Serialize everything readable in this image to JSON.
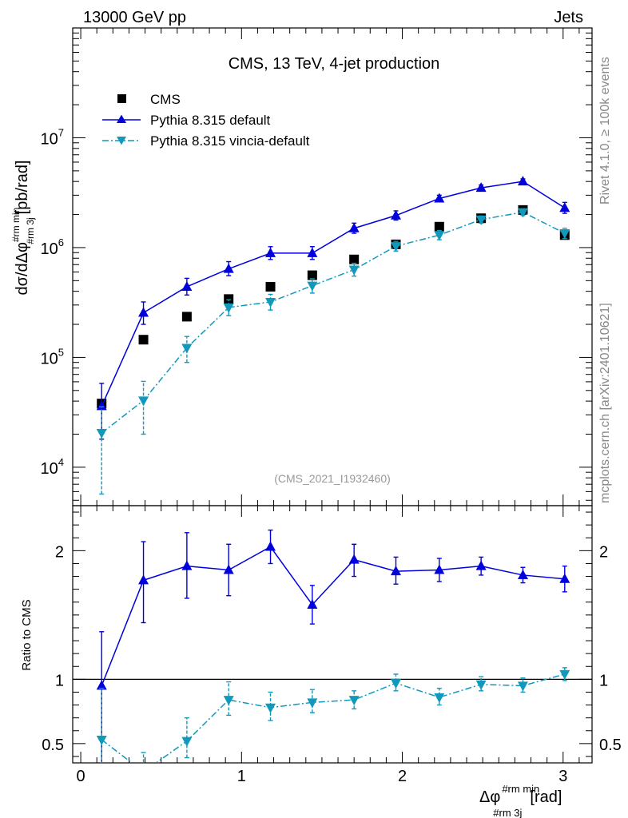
{
  "header": {
    "left": "13000 GeV pp",
    "right": "Jets"
  },
  "side_texts": {
    "rivet": "Rivet 4.1.0, ≥ 100k events",
    "mcplots": "mcplots.cern.ch [arXiv:2401.10621]"
  },
  "reference": "(CMS_2021_I1932460)",
  "colors": {
    "cms": "#000000",
    "default": "#0000dd",
    "vincia": "#1199bb"
  },
  "chart_data": [
    {
      "type": "line",
      "title": "CMS, 13 TeV, 4-jet production",
      "xlabel_main": "Δφ",
      "xlabel_sup": "#rm min",
      "xlabel_sub": "#rm 3j",
      "xlabel_unit": "[rad]",
      "ylabel_main": "dσ/dΔφ",
      "ylabel_sup": "#rm min",
      "ylabel_sub": "#rm 3j",
      "ylabel_unit": "[pb/rad]",
      "yscale": "log",
      "xlim": [
        -0.05,
        3.18
      ],
      "ylim_log10": [
        3.65,
        8.0
      ],
      "y_ticks": [
        {
          "value": 10000,
          "mant": "10",
          "exp": "4"
        },
        {
          "value": 100000,
          "mant": "10",
          "exp": "5"
        },
        {
          "value": 1000000,
          "mant": "10",
          "exp": "6"
        },
        {
          "value": 10000000,
          "mant": "10",
          "exp": "7"
        }
      ],
      "legend_position": "top-left",
      "x": [
        0.13,
        0.39,
        0.66,
        0.92,
        1.18,
        1.44,
        1.7,
        1.96,
        2.23,
        2.49,
        2.75,
        3.01
      ],
      "series": [
        {
          "name": "CMS",
          "marker": "square",
          "line": "none",
          "values": [
            38000,
            145000,
            235000,
            340000,
            440000,
            560000,
            780000,
            1070000,
            1550000,
            1850000,
            2200000,
            1300000
          ],
          "err_low": [
            0,
            0,
            0,
            0,
            0,
            0,
            0,
            0,
            0,
            0,
            0,
            0
          ],
          "err_high": [
            0,
            0,
            0,
            0,
            0,
            0,
            0,
            0,
            0,
            0,
            0,
            0
          ]
        },
        {
          "name": "Pythia 8.315 default",
          "marker": "triangle-up",
          "line": "solid",
          "values": [
            36000,
            255000,
            440000,
            640000,
            890000,
            890000,
            1500000,
            1960000,
            2800000,
            3500000,
            4000000,
            2300000
          ],
          "err_low": [
            18000,
            55000,
            70000,
            85000,
            110000,
            110000,
            150000,
            180000,
            180000,
            200000,
            200000,
            250000
          ],
          "err_high": [
            22000,
            65000,
            85000,
            105000,
            130000,
            130000,
            170000,
            200000,
            200000,
            220000,
            220000,
            280000
          ]
        },
        {
          "name": "Pythia 8.315 vincia-default",
          "marker": "triangle-down",
          "line": "dashdot",
          "values": [
            20500,
            40500,
            122000,
            285000,
            320000,
            450000,
            630000,
            1030000,
            1300000,
            1800000,
            2100000,
            1350000
          ],
          "err_low": [
            14800,
            20500,
            32000,
            45000,
            50000,
            65000,
            80000,
            100000,
            120000,
            130000,
            140000,
            140000
          ],
          "err_high": [
            15000,
            20000,
            33000,
            50000,
            55000,
            70000,
            90000,
            110000,
            130000,
            140000,
            150000,
            150000
          ]
        }
      ]
    },
    {
      "type": "line",
      "ylabel": "Ratio to CMS",
      "ylim": [
        0.35,
        2.35
      ],
      "y_ticks": [
        0.5,
        1,
        2
      ],
      "x_ticks": [
        0,
        1,
        2,
        3
      ],
      "reference_line": 1,
      "x": [
        0.13,
        0.39,
        0.66,
        0.92,
        1.18,
        1.44,
        1.7,
        1.96,
        2.23,
        2.49,
        2.75,
        3.01
      ],
      "series": [
        {
          "name": "Pythia 8.315 default",
          "marker": "triangle-up",
          "line": "solid",
          "values": [
            0.95,
            1.77,
            1.88,
            1.85,
            2.03,
            1.58,
            1.93,
            1.84,
            1.85,
            1.88,
            1.81,
            1.78
          ],
          "err_low": [
            0.95,
            0.33,
            0.25,
            0.2,
            0.13,
            0.15,
            0.13,
            0.1,
            0.09,
            0.07,
            0.06,
            0.1
          ],
          "err_high": [
            0.42,
            0.3,
            0.26,
            0.2,
            0.13,
            0.15,
            0.12,
            0.11,
            0.09,
            0.07,
            0.06,
            0.1
          ]
        },
        {
          "name": "Pythia 8.315 vincia-default",
          "marker": "triangle-down",
          "line": "dashdot",
          "values": [
            0.53,
            0.28,
            0.52,
            0.84,
            0.78,
            0.82,
            0.84,
            0.97,
            0.86,
            0.96,
            0.95,
            1.04
          ],
          "err_low": [
            0.53,
            0.15,
            0.13,
            0.12,
            0.1,
            0.08,
            0.07,
            0.06,
            0.06,
            0.05,
            0.05,
            0.05
          ],
          "err_high": [
            0.4,
            0.15,
            0.18,
            0.14,
            0.12,
            0.1,
            0.07,
            0.07,
            0.07,
            0.06,
            0.06,
            0.05
          ]
        }
      ]
    }
  ]
}
